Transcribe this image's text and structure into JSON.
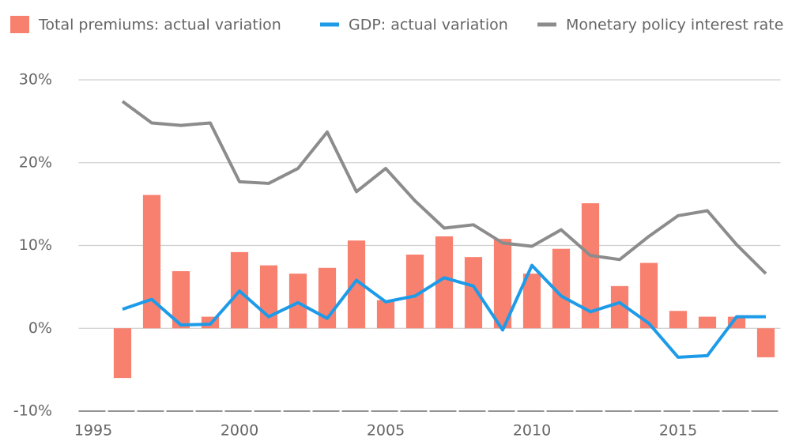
{
  "chart_data": {
    "type": "bar-line",
    "x": [
      1996,
      1997,
      1998,
      1999,
      2000,
      2001,
      2002,
      2003,
      2004,
      2005,
      2006,
      2007,
      2008,
      2009,
      2010,
      2011,
      2012,
      2013,
      2014,
      2015,
      2016,
      2017,
      2018
    ],
    "series": [
      {
        "name": "Total premiums: actual variation",
        "type": "bar",
        "color": "#f8806f",
        "values": [
          -6.0,
          16.1,
          6.9,
          1.4,
          9.2,
          7.6,
          6.6,
          7.3,
          10.6,
          3.4,
          8.9,
          11.1,
          8.6,
          10.8,
          6.6,
          9.6,
          15.1,
          5.1,
          7.9,
          2.1,
          1.4,
          1.4,
          -3.5
        ]
      },
      {
        "name": "GDP: actual variation",
        "type": "line",
        "color": "#1e9be8",
        "values": [
          2.3,
          3.5,
          0.4,
          0.5,
          4.5,
          1.4,
          3.1,
          1.2,
          5.8,
          3.2,
          3.9,
          6.1,
          5.1,
          -0.2,
          7.6,
          3.9,
          2.0,
          3.1,
          0.6,
          -3.5,
          -3.3,
          1.4,
          1.4
        ]
      },
      {
        "name": "Monetary policy interest rate",
        "type": "line",
        "color": "#8c8c8c",
        "values": [
          27.4,
          24.8,
          24.5,
          24.8,
          17.7,
          17.5,
          19.3,
          23.7,
          16.5,
          19.3,
          15.4,
          12.1,
          12.5,
          10.3,
          9.9,
          11.9,
          8.8,
          8.3,
          11.1,
          13.6,
          14.2,
          10.1,
          6.6
        ]
      }
    ],
    "xlim": [
      1994.5,
      2018.5
    ],
    "xticks": [
      1995,
      2000,
      2005,
      2010,
      2015
    ],
    "ylim": [
      -10,
      30
    ],
    "yticks": [
      {
        "value": -10,
        "label": "-10%"
      },
      {
        "value": 0,
        "label": "0%"
      },
      {
        "value": 10,
        "label": "10%"
      },
      {
        "value": 20,
        "label": "20%"
      },
      {
        "value": 30,
        "label": "30%"
      }
    ],
    "grid": true,
    "legend": "top"
  }
}
